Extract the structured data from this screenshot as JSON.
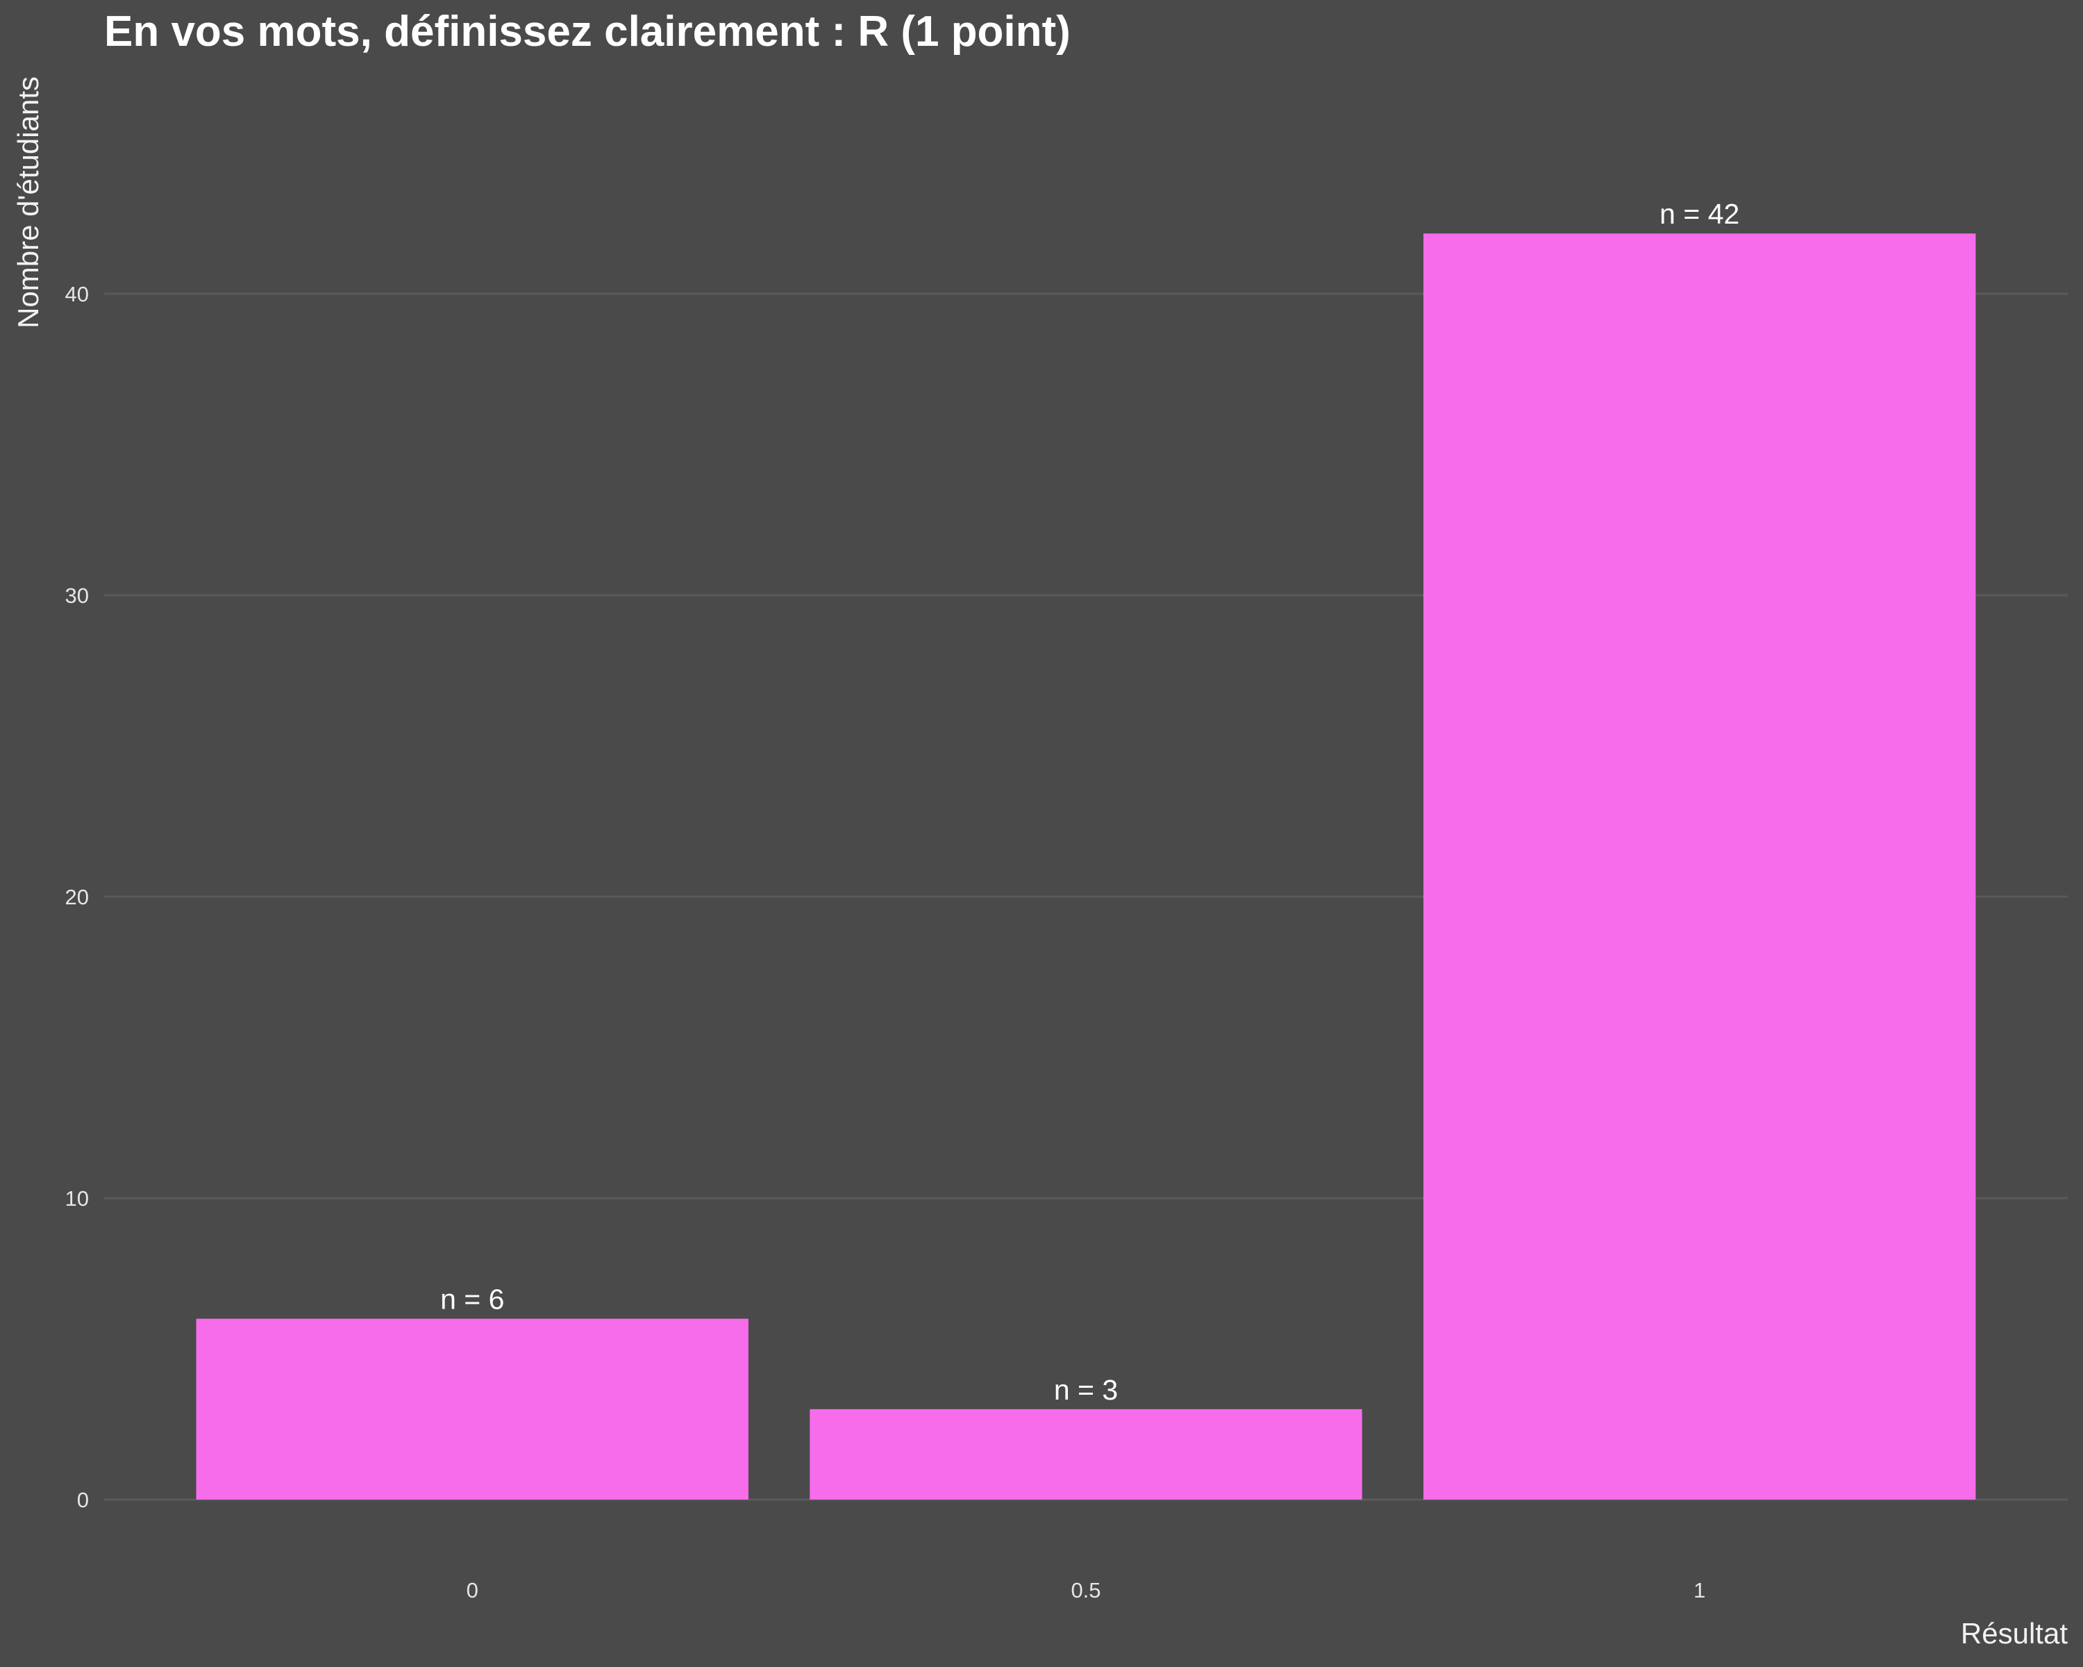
{
  "chart_data": {
    "type": "bar",
    "title": "En vos mots, définissez clairement : R (1 point)",
    "xlabel": "Résultat",
    "ylabel": "Nombre d'étudiants",
    "categories": [
      "0",
      "0.5",
      "1"
    ],
    "values": [
      6,
      3,
      42
    ],
    "data_labels": [
      "n = 6",
      "n = 3",
      "n = 42"
    ],
    "yticks": [
      0,
      10,
      20,
      30,
      40
    ],
    "ylim": [
      0,
      46
    ],
    "grid": true,
    "legend": "none",
    "colors": {
      "background": "#4a4a4a",
      "bar": "#f76cea",
      "grid": "#5a5a5a",
      "text": "#ffffff"
    }
  }
}
